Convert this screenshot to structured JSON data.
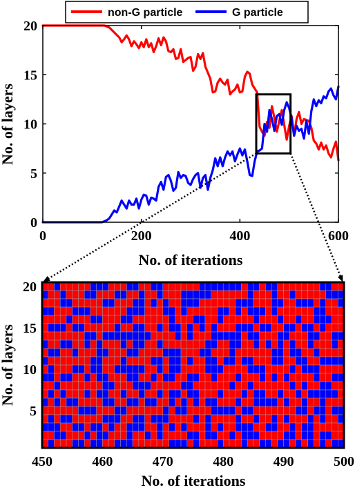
{
  "chart_data": [
    {
      "type": "line",
      "xlabel": "No. of iterations",
      "ylabel": "No. of layers",
      "xlim": [
        0,
        600
      ],
      "ylim": [
        0,
        20
      ],
      "xticks": [
        0,
        200,
        400,
        600
      ],
      "yticks": [
        0,
        5,
        10,
        15,
        20
      ],
      "grid": false,
      "legend": {
        "placement": "top-center-outside",
        "orientation": "horizontal"
      },
      "series": [
        {
          "name": "non-G particle",
          "color": "#ff0000",
          "x": [
            0,
            120,
            125,
            135,
            145,
            155,
            160,
            165,
            170,
            175,
            180,
            185,
            190,
            195,
            200,
            205,
            210,
            215,
            220,
            225,
            230,
            235,
            240,
            245,
            250,
            255,
            260,
            265,
            270,
            275,
            280,
            285,
            290,
            295,
            300,
            305,
            310,
            315,
            320,
            325,
            330,
            335,
            340,
            345,
            350,
            355,
            360,
            365,
            370,
            375,
            380,
            385,
            390,
            395,
            400,
            405,
            410,
            415,
            420,
            425,
            430,
            435,
            440,
            445,
            450,
            455,
            460,
            465,
            470,
            475,
            480,
            485,
            490,
            495,
            500,
            505,
            510,
            515,
            520,
            525,
            530,
            535,
            540,
            545,
            550,
            555,
            560,
            565,
            570,
            575,
            580,
            585,
            590,
            595,
            600
          ],
          "y": [
            20,
            20,
            20,
            19.8,
            19.3,
            18.8,
            18.3,
            18.6,
            19,
            18.6,
            17.9,
            18.4,
            18.1,
            17.7,
            18.3,
            17.8,
            18.6,
            17.8,
            18.2,
            17.3,
            17.9,
            18.7,
            18,
            18.8,
            18.4,
            17.4,
            17.3,
            17.6,
            16.6,
            16.7,
            17.6,
            16.3,
            16.5,
            16.7,
            16.8,
            15.4,
            15.8,
            17.1,
            16.6,
            17.2,
            15.8,
            15.2,
            14.6,
            13.2,
            13.3,
            14.2,
            14.6,
            14.2,
            14,
            14.5,
            13,
            13.3,
            13.5,
            14,
            13.2,
            13.3,
            14.8,
            15.3,
            15.1,
            14,
            13.6,
            13.2,
            9.7,
            9.2,
            8.8,
            10.2,
            9.6,
            11.8,
            10.6,
            9.2,
            10.3,
            11.4,
            9.9,
            8.4,
            9.8,
            10.8,
            8.8,
            10.5,
            11.2,
            10,
            10.5,
            10.4,
            10.3,
            9.6,
            8.3,
            8,
            7.4,
            8.1,
            7.4,
            7.8,
            7,
            6.6,
            7.5,
            8.2,
            6.3
          ]
        },
        {
          "name": "G particle",
          "color": "#0000ff",
          "x": [
            0,
            120,
            125,
            130,
            135,
            140,
            145,
            150,
            155,
            160,
            165,
            170,
            175,
            180,
            185,
            190,
            195,
            200,
            205,
            210,
            215,
            220,
            225,
            230,
            235,
            240,
            245,
            250,
            255,
            260,
            265,
            270,
            275,
            280,
            285,
            290,
            295,
            300,
            305,
            310,
            315,
            320,
            325,
            330,
            335,
            340,
            345,
            350,
            355,
            360,
            365,
            370,
            375,
            380,
            385,
            390,
            395,
            400,
            405,
            410,
            415,
            420,
            425,
            430,
            435,
            440,
            445,
            450,
            455,
            460,
            465,
            470,
            475,
            480,
            485,
            490,
            495,
            500,
            505,
            510,
            515,
            520,
            525,
            530,
            535,
            540,
            545,
            550,
            555,
            560,
            565,
            570,
            575,
            580,
            585,
            590,
            595,
            600
          ],
          "y": [
            0,
            0,
            0.1,
            0.2,
            0.4,
            0.8,
            1.2,
            1,
            1.6,
            2.2,
            1.8,
            1.4,
            2.2,
            1.8,
            1.8,
            2.4,
            1.4,
            2.3,
            2.8,
            2.7,
            1.8,
            2.5,
            2.4,
            2.2,
            3.6,
            4.1,
            3.3,
            4.6,
            4.8,
            4.2,
            3.2,
            3.5,
            5.1,
            4.5,
            4.8,
            4.7,
            4,
            3.8,
            4.4,
            4.8,
            5,
            3.5,
            4.5,
            4.8,
            3.3,
            4.5,
            5.3,
            6.5,
            5.7,
            6.6,
            5.7,
            6.6,
            7.2,
            6.8,
            7.2,
            6.2,
            6.9,
            7.5,
            6.8,
            7.4,
            6.2,
            4.8,
            4.7,
            6.2,
            7.2,
            7.3,
            7.5,
            10,
            9.2,
            11.4,
            10.5,
            9.3,
            10.8,
            11,
            9.9,
            11.4,
            12.2,
            11.6,
            10.6,
            8.8,
            9.8,
            9.3,
            9.5,
            8.5,
            10.3,
            9,
            11.3,
            12.5,
            11.8,
            12.4,
            12.1,
            12.8,
            12.6,
            13.3,
            13.6,
            12.9,
            12.5,
            13.8
          ]
        }
      ],
      "annotation": {
        "type": "zoom-box",
        "x": [
          450,
          500
        ],
        "y": [
          7,
          13
        ]
      }
    },
    {
      "type": "heatmap",
      "xlabel": "No. of iterations",
      "ylabel": "No. of layers",
      "xlim": [
        450,
        500
      ],
      "ylim": [
        1,
        20
      ],
      "xticks": [
        450,
        460,
        470,
        480,
        490,
        500
      ],
      "yticks": [
        5,
        10,
        15,
        20
      ],
      "grid": true,
      "colors": {
        "0": "#ff0000",
        "1": "#0000ff",
        "grid": "#9a9a9a"
      },
      "rows_top_to_bottom": [
        "00100000111000110011000000111111101101100000001100",
        "10010001100011001001000111110000001000100100000111",
        "00011000001100011010100111000000111000110011101001",
        "11000111000000111000110100000110101110100000011000",
        "00001000110001100000010001100100000100010010011100",
        "01110110000010011001011010101000111011001101101000",
        "00000001101111111100001010001111101100011000110011",
        "10011001010001011001000000011001100101010100100010",
        "01100100011000110000111000110001000000110110010000",
        "10000000110001000011011010011011011000110011001111",
        "01000110110011111001011000011100001110000101110000",
        "11011001011000110010110011001000100010101000010011",
        "00100000001100011100000110000001001000000101001100",
        "01010001011001001001011011000100010110010010111110",
        "10101100001100110110010101011000100111101001001000",
        "00000011100011000000101100001111011000000011011011",
        "01011000001110011011100001010000100100101000101001",
        "11100110110100111001010100010100111001100101100000",
        "00110001011000100101000011011001011100001101101100",
        "01000110110011100000011101000100010011011010101011"
      ]
    }
  ],
  "legend_entries": [
    "non-G particle",
    "G particle"
  ]
}
